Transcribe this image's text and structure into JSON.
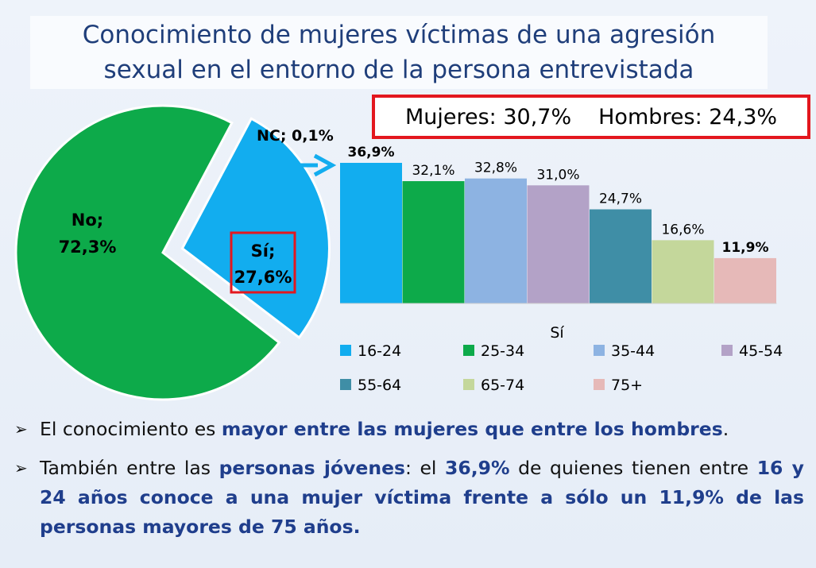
{
  "title": {
    "line1": "Conocimiento de mujeres víctimas de una agresión",
    "line2": "sexual en el entorno de la persona entrevistada"
  },
  "gender_summary": {
    "women": "Mujeres: 30,7%",
    "men": "Hombres: 24,3%"
  },
  "chart_data": [
    {
      "type": "pie",
      "slices": [
        {
          "label": "No;",
          "value_label": "72,3%",
          "value": 72.3,
          "color": "#0daa4a"
        },
        {
          "label": "Sí;",
          "value_label": "27,6%",
          "value": 27.6,
          "color": "#12adef"
        },
        {
          "label": "NC;",
          "value_label": "0,1%",
          "value": 0.1,
          "color": "#ffffff"
        }
      ],
      "annotation": "NC; 0,1%"
    },
    {
      "type": "bar",
      "xlabel": "Sí",
      "categories": [
        "16-24",
        "25-34",
        "35-44",
        "45-54",
        "55-64",
        "65-74",
        "75+"
      ],
      "values": [
        36.9,
        32.1,
        32.8,
        31.0,
        24.7,
        16.6,
        11.9
      ],
      "value_labels": [
        "36,9%",
        "32,1%",
        "32,8%",
        "31,0%",
        "24,7%",
        "16,6%",
        "11,9%"
      ],
      "bold_labels": [
        true,
        false,
        false,
        false,
        false,
        false,
        true
      ],
      "colors": [
        "#12adef",
        "#0daa4a",
        "#8db3e2",
        "#b3a2c7",
        "#3f8ea6",
        "#c4d79b",
        "#e6b9b8"
      ],
      "legend_placement": "bottom"
    }
  ],
  "bullets": [
    {
      "arrow": "➢",
      "parts": [
        {
          "text": "El conocimiento es ",
          "hl": false
        },
        {
          "text": "mayor entre las mujeres que entre los hombres",
          "hl": true
        },
        {
          "text": ".",
          "hl": false
        }
      ]
    },
    {
      "arrow": "➢",
      "parts": [
        {
          "text": "También entre las ",
          "hl": false
        },
        {
          "text": "personas jóvenes",
          "hl": true
        },
        {
          "text": ": el ",
          "hl": false
        },
        {
          "text": "36,9%",
          "hl": true
        },
        {
          "text": " de quienes tienen entre ",
          "hl": false
        },
        {
          "text": "16 y 24 años conoce a una mujer víctima frente a sólo un 11,9% de las personas mayores de 75 años.",
          "hl": true
        }
      ]
    }
  ]
}
